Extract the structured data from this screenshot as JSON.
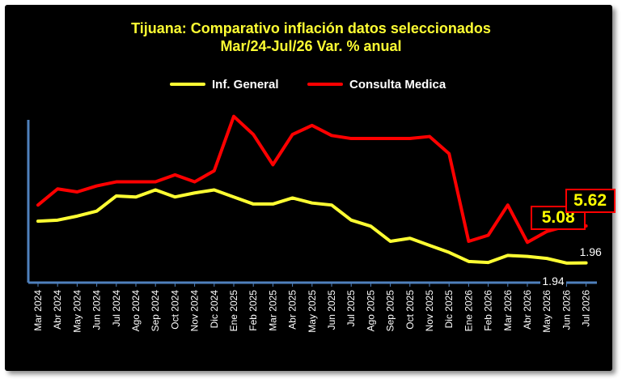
{
  "chart_data": {
    "type": "line",
    "title": "Tijuana: Comparativo inflación datos seleccionados",
    "subtitle": "Mar/24-Jul/26 Var. % anual",
    "xlabel": "",
    "ylabel": "",
    "legend_position": "top",
    "grid": false,
    "categories": [
      "Mar 2024",
      "Abr 2024",
      "May 2024",
      "Jun 2024",
      "Jul 2024",
      "Ago 2024",
      "Sep 2024",
      "Oct 2024",
      "Nov 2024",
      "Dic 2024",
      "Ene 2025",
      "Feb 2025",
      "Mar 2025",
      "Abr 2025",
      "May 2025",
      "Jun 2025",
      "Jul 2025",
      "Ago 2025",
      "Sep 2025",
      "Oct 2025",
      "Nov 2025",
      "Dic 2025",
      "Ene 2026",
      "Feb 2026",
      "Mar 2026",
      "Abr 2026",
      "May 2026",
      "Jun 2026",
      "Jul 2026"
    ],
    "ylim": [
      0,
      18
    ],
    "series": [
      {
        "name": "Inf. General",
        "color": "#ffff33",
        "values": [
          6.1,
          6.2,
          6.6,
          7.1,
          8.6,
          8.5,
          9.2,
          8.5,
          8.9,
          9.2,
          8.5,
          7.8,
          7.8,
          8.4,
          7.9,
          7.7,
          6.2,
          5.6,
          4.1,
          4.4,
          3.7,
          3.0,
          2.1,
          2.0,
          2.7,
          2.6,
          2.4,
          1.94,
          1.96
        ]
      },
      {
        "name": "Consulta Medica",
        "color": "#ff0000",
        "values": [
          7.7,
          9.3,
          9.0,
          9.6,
          10.0,
          10.0,
          10.0,
          10.7,
          10.0,
          11.1,
          16.5,
          14.7,
          11.7,
          14.7,
          15.6,
          14.6,
          14.3,
          14.3,
          14.3,
          14.3,
          14.5,
          12.8,
          4.1,
          4.7,
          7.7,
          4.0,
          5.08,
          5.62,
          5.62
        ]
      }
    ],
    "annotations": [
      {
        "text": "5.08",
        "series": "Consulta Medica",
        "category": "May 2026",
        "boxed": true
      },
      {
        "text": "5.62",
        "series": "Consulta Medica",
        "category": "Jul 2026",
        "boxed": true
      },
      {
        "text": "1.94",
        "series": "Inf. General",
        "category": "Jun 2026",
        "boxed": false
      },
      {
        "text": "1.96",
        "series": "Inf. General",
        "category": "Jul 2026",
        "boxed": false
      }
    ]
  }
}
